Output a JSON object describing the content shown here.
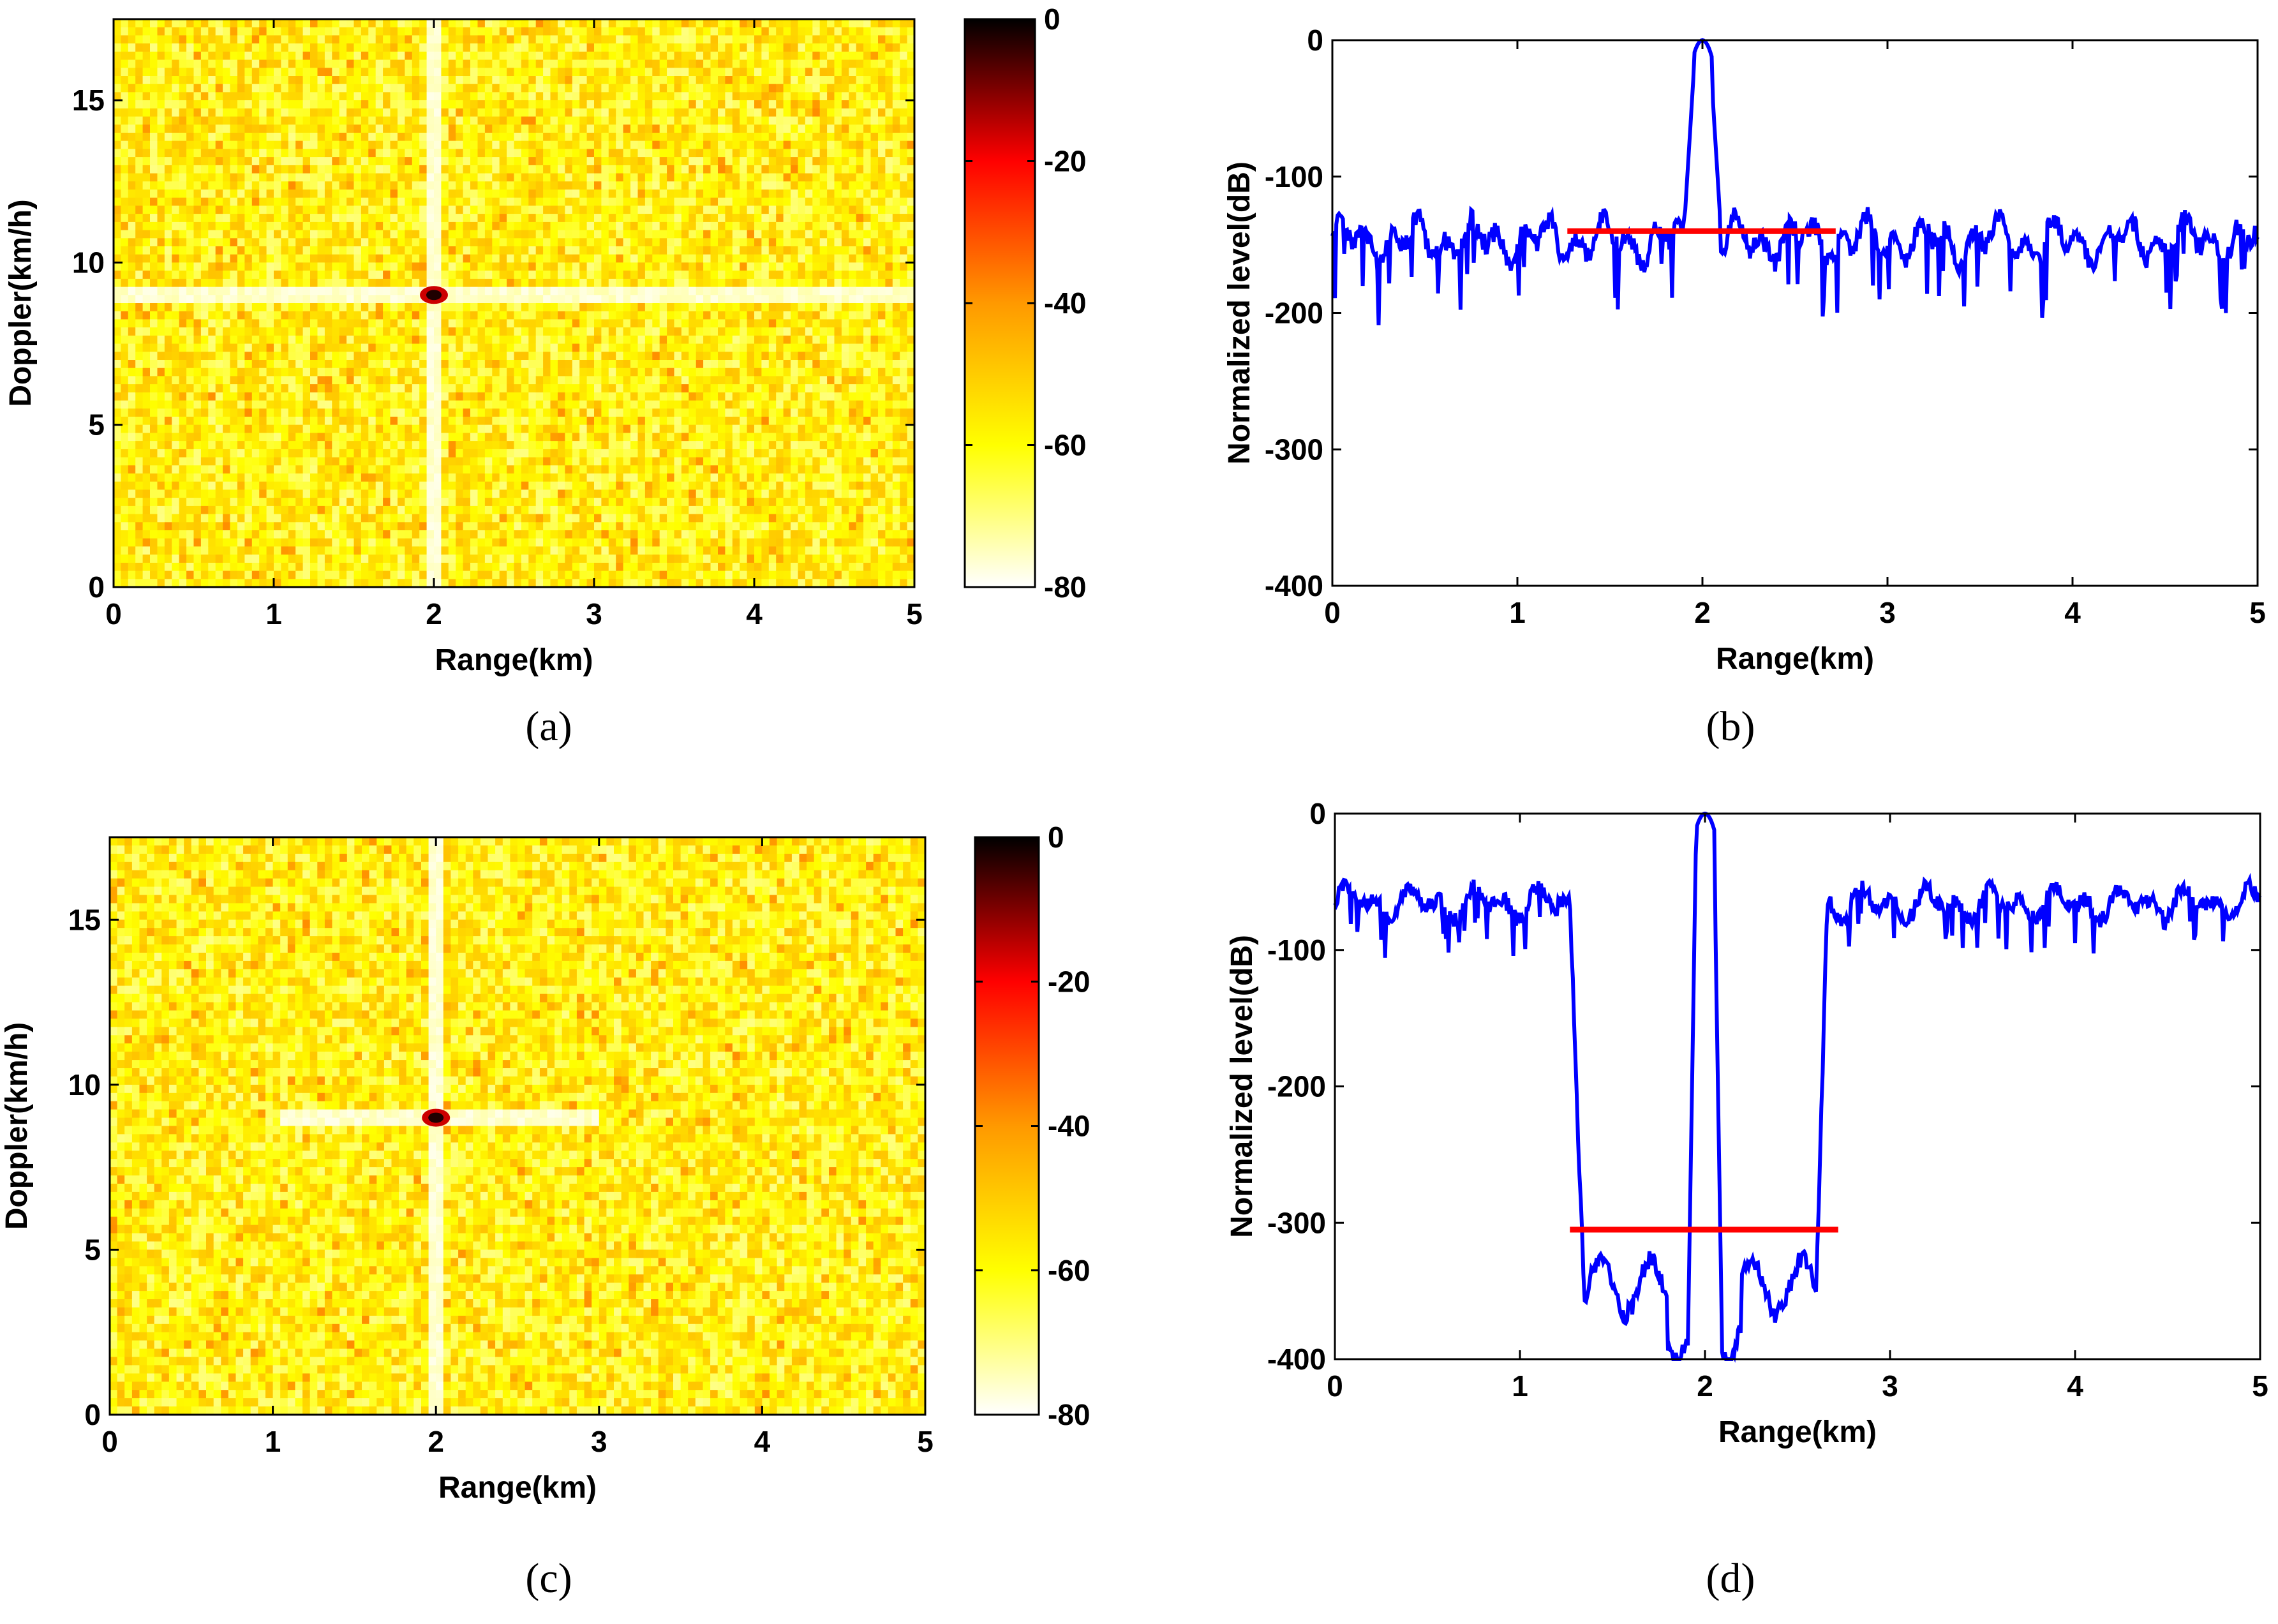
{
  "chart_data": [
    {
      "id": "a",
      "type": "heatmap",
      "panel_label": "(a)",
      "xlabel": "Range(km)",
      "ylabel": "Doppler(km/h)",
      "xlim": [
        0,
        5
      ],
      "ylim": [
        0,
        17.5
      ],
      "xticks": [
        "0",
        "1",
        "2",
        "3",
        "4",
        "5"
      ],
      "yticks": [
        "0",
        "5",
        "10",
        "15"
      ],
      "colorbar": {
        "range": [
          -80,
          0
        ],
        "ticks": [
          "0",
          "-20",
          "-40",
          "-60",
          "-80"
        ]
      },
      "peak": {
        "range_km": 2.0,
        "doppler_kmh": 9.0,
        "level_db": 0
      },
      "ridges": {
        "range_km": 2.0,
        "doppler_kmh": 9.0
      },
      "colors": {
        "low": "#ffffff",
        "mid": "#ffff00",
        "high": "#ff0000",
        "peak": "#000000"
      }
    },
    {
      "id": "b",
      "type": "line",
      "panel_label": "(b)",
      "xlabel": "Range(km)",
      "ylabel": "Normalized level(dB)",
      "xlim": [
        0,
        5
      ],
      "ylim": [
        -400,
        0
      ],
      "xticks": [
        "0",
        "1",
        "2",
        "3",
        "4",
        "5"
      ],
      "yticks": [
        "0",
        "-100",
        "-200",
        "-300",
        "-400"
      ],
      "series": [
        {
          "name": "profile",
          "color": "#0000ff",
          "sidelobe_level_db": -140,
          "peak_range_km": 2.0,
          "peak_db": 0
        },
        {
          "name": "threshold",
          "color": "#ff0000",
          "x": [
            1.27,
            2.72
          ],
          "y": [
            -140,
            -140
          ]
        }
      ]
    },
    {
      "id": "c",
      "type": "heatmap",
      "panel_label": "(c)",
      "xlabel": "Range(km)",
      "ylabel": "Doppler(km/h)",
      "xlim": [
        0,
        5
      ],
      "ylim": [
        0,
        17.5
      ],
      "xticks": [
        "0",
        "1",
        "2",
        "3",
        "4",
        "5"
      ],
      "yticks": [
        "0",
        "5",
        "10",
        "15"
      ],
      "colorbar": {
        "range": [
          -80,
          0
        ],
        "ticks": [
          "0",
          "-20",
          "-40",
          "-60",
          "-80"
        ]
      },
      "peak": {
        "range_km": 2.0,
        "doppler_kmh": 9.0,
        "level_db": 0
      },
      "ridges": {
        "range_km": 2.0,
        "doppler_kmh": 9.0
      },
      "colors": {
        "low": "#ffffff",
        "mid": "#ffff00",
        "high": "#ff0000",
        "peak": "#000000"
      }
    },
    {
      "id": "d",
      "type": "line",
      "panel_label": "(d)",
      "xlabel": "Range(km)",
      "ylabel": "Normalized level(dB)",
      "xlim": [
        0,
        5
      ],
      "ylim": [
        -400,
        0
      ],
      "xticks": [
        "0",
        "1",
        "2",
        "3",
        "4",
        "5"
      ],
      "yticks": [
        "0",
        "-100",
        "-200",
        "-300",
        "-400"
      ],
      "series": [
        {
          "name": "profile",
          "color": "#0000ff",
          "outer_level_db": -60,
          "notch_level_db": -340,
          "notch_range_km": [
            1.35,
            2.6
          ],
          "peak_range_km": 2.0,
          "peak_db": 0
        },
        {
          "name": "threshold",
          "color": "#ff0000",
          "x": [
            1.27,
            2.72
          ],
          "y": [
            -305,
            -305
          ]
        }
      ]
    }
  ]
}
